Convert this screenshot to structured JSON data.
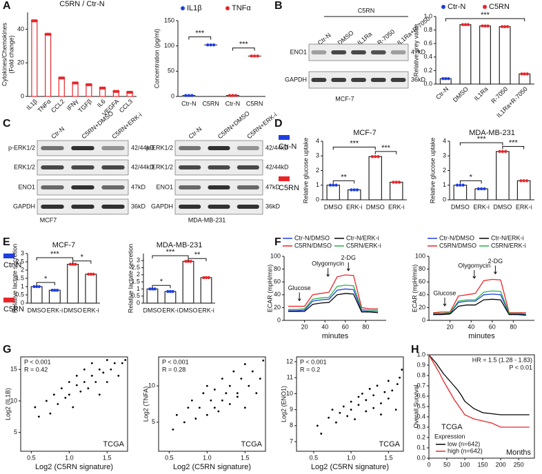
{
  "panel_labels": [
    "A",
    "B",
    "C",
    "D",
    "E",
    "F",
    "G",
    "H"
  ],
  "blots": [
    {
      "group": "C5RN",
      "lanes": [
        "Ctr-N",
        "DMSO",
        "IL1Ra",
        "R-7050",
        "IL1Ra+R-7050"
      ],
      "rows": [
        {
          "protein": "ENO1",
          "size": "47kD"
        },
        {
          "protein": "GAPDH",
          "size": "36kD"
        }
      ],
      "caption": "MCF-7"
    },
    {
      "lanes": [
        "Ctr-N",
        "C5RN+DMSO",
        "C5RN+ERK-i"
      ],
      "rows": [
        {
          "protein": "p-ERK1/2",
          "size": "42/44kD"
        },
        {
          "protein": "ERK1/2",
          "size": "42/44kD"
        },
        {
          "protein": "ENO1",
          "size": "47kD"
        },
        {
          "protein": "GAPDH",
          "size": "36kD"
        }
      ],
      "caption": "MCF7"
    },
    {
      "lanes": [
        "Ctr-N",
        "C5RN+DMSO",
        "C5RN+ERK-i"
      ],
      "rows": [
        {
          "protein": "p-ERK1/2",
          "size": "42/44kD"
        },
        {
          "protein": "ERK1/2",
          "size": "42/44kD"
        },
        {
          "protein": "ENO1",
          "size": "47kD"
        },
        {
          "protein": "GAPDH",
          "size": "36kD"
        }
      ],
      "caption": "MDA-MB-231"
    }
  ],
  "chart_data": [
    {
      "type": "bar",
      "title": "C5RN / Ctr-N",
      "ylabel": [
        "Cytokines/Chemokines",
        "(Fold change)"
      ],
      "categories": [
        "IL1β",
        "TNFα",
        "CCL2",
        "IFNγ",
        "TGFβ",
        "IL6",
        "VEGFA",
        "CCL3"
      ],
      "series": [
        {
          "color": "#e8262a",
          "values": [
            45,
            37,
            11,
            8,
            7,
            5,
            3,
            2.5
          ]
        }
      ],
      "ylim": [
        0,
        50
      ],
      "yticks": [
        0,
        20,
        40
      ]
    },
    {
      "type": "bar",
      "ylabel": [
        "Concentration (pg/ml)"
      ],
      "categories": [
        "Ctr-N",
        "C5RN",
        "Ctr-N",
        "C5RN"
      ],
      "series": [
        {
          "name": "IL1β",
          "color": "#1f3ee0",
          "values": [
            2,
            102,
            null,
            null
          ]
        },
        {
          "name": "TNFα",
          "color": "#e8262a",
          "values": [
            null,
            null,
            2,
            80
          ]
        }
      ],
      "bars": false,
      "ylim": [
        0,
        150
      ],
      "yticks": [
        0,
        50,
        100,
        150
      ],
      "annotations": [
        "***",
        "***"
      ]
    },
    {
      "type": "bar",
      "ylabel": [
        "Relative grey value"
      ],
      "categories": [
        "Ctr-N",
        "DMSO",
        "IL1Ra",
        "R-7050",
        "IL1Ra+R-7050"
      ],
      "series": [
        {
          "name": "Ctr-N",
          "color": "#1f3ee0",
          "values": [
            0.08,
            null,
            null,
            null,
            null
          ]
        },
        {
          "name": "C5RN",
          "color": "#e8262a",
          "values": [
            null,
            0.88,
            0.86,
            0.85,
            0.15
          ]
        }
      ],
      "ylim": [
        0,
        1
      ],
      "yticks": [
        {
          "value": 0,
          "label": "0.0"
        },
        0.2,
        0.4,
        0.6,
        0.8,
        {
          "value": 1,
          "label": "1.0"
        }
      ],
      "annotations": [
        "***"
      ]
    },
    {
      "type": "bar",
      "title": "MCF-7",
      "ylabel": [
        "Relative glucose uptake"
      ],
      "categories": [
        "DMSO",
        "ERK-i",
        "DMSO",
        "ERK-i"
      ],
      "series": [
        {
          "name": "Ctr-N",
          "color": "#1f3ee0",
          "values": [
            1.0,
            0.68,
            null,
            null
          ]
        },
        {
          "name": "C5RN",
          "color": "#e8262a",
          "values": [
            null,
            null,
            2.95,
            1.2
          ]
        }
      ],
      "ylim": [
        0,
        4
      ],
      "yticks": [
        0,
        1,
        2,
        3,
        4
      ],
      "annotations": [
        "**",
        "***",
        "***"
      ]
    },
    {
      "type": "bar",
      "title": "MDA-MB-231",
      "ylabel": [
        "Relative glucose uptake"
      ],
      "categories": [
        "DMSO",
        "ERK-i",
        "DMSO",
        "ERK-i"
      ],
      "series": [
        {
          "color": "#1f3ee0",
          "values": [
            1.0,
            0.75,
            null,
            null
          ]
        },
        {
          "color": "#e8262a",
          "values": [
            null,
            null,
            3.3,
            1.3
          ]
        }
      ],
      "ylim": [
        0,
        4
      ],
      "yticks": [
        0,
        1,
        2,
        3,
        4
      ],
      "annotations": [
        "*",
        "***",
        "***"
      ]
    },
    {
      "type": "bar",
      "title": "MCF-7",
      "ylabel": [
        "Relative lactate secretion"
      ],
      "categories": [
        "DMSO",
        "ERK-i",
        "DMSO",
        "ERK-i"
      ],
      "series": [
        {
          "name": "Ctr-N",
          "color": "#1f3ee0",
          "values": [
            1.0,
            0.78,
            null,
            null
          ]
        },
        {
          "name": "C5RN",
          "color": "#e8262a",
          "values": [
            null,
            null,
            2.35,
            1.75
          ]
        }
      ],
      "ylim": [
        0,
        3
      ],
      "yticks": [
        0,
        0.5,
        1,
        1.5,
        2,
        2.5,
        3
      ],
      "annotations": [
        "*",
        "***",
        "*"
      ]
    },
    {
      "type": "bar",
      "title": "MDA-MB-231",
      "ylabel": [
        "Relative lactate secretion"
      ],
      "categories": [
        "DMSO",
        "ERK-i",
        "DMSO",
        "ERK-i"
      ],
      "series": [
        {
          "color": "#1f3ee0",
          "values": [
            1.0,
            0.82,
            null,
            null
          ]
        },
        {
          "color": "#e8262a",
          "values": [
            null,
            null,
            2.95,
            1.8
          ]
        }
      ],
      "ylim": [
        0,
        3.5
      ],
      "yticks": [
        0,
        0.5,
        1,
        1.5,
        2,
        2.5,
        3
      ],
      "annotations": [
        "*",
        "***",
        "**"
      ]
    },
    {
      "type": "line",
      "ylabel": [
        "ECAR (mpH/min)"
      ],
      "xlabel": "minutes",
      "x": [
        4,
        12,
        20,
        28,
        36,
        44,
        52,
        60,
        68,
        76,
        84,
        92
      ],
      "xlim": [
        0,
        100
      ],
      "xticks": [
        20,
        40,
        60,
        80
      ],
      "ylim": [
        0,
        100
      ],
      "yticks": [
        0,
        20,
        40,
        60,
        80,
        100
      ],
      "series": [
        {
          "name": "Ctr-N/DMSO",
          "color": "#1f3ee0",
          "values": [
            15,
            15,
            16,
            30,
            32,
            33,
            47,
            49,
            48,
            15,
            14,
            14
          ]
        },
        {
          "name": "Ctr-N/ERK-i",
          "color": "#000000",
          "values": [
            14,
            14,
            14,
            25,
            27,
            28,
            40,
            42,
            41,
            13,
            13,
            12
          ]
        },
        {
          "name": "C5RN/DMSO",
          "color": "#e8262a",
          "values": [
            22,
            22,
            22,
            40,
            42,
            44,
            68,
            71,
            70,
            20,
            18,
            18
          ]
        },
        {
          "name": "C5RN/ERK-i",
          "color": "#22b14c",
          "values": [
            17,
            17,
            18,
            33,
            35,
            36,
            53,
            55,
            54,
            17,
            16,
            16
          ]
        }
      ],
      "annotations": [
        "Glucose",
        "Olygomycin",
        "2-DG"
      ]
    },
    {
      "type": "line",
      "ylabel": [
        "ECAR (mpH/min)"
      ],
      "xlabel": "minutes",
      "x": [
        4,
        12,
        20,
        28,
        36,
        44,
        52,
        60,
        68,
        76,
        84,
        92
      ],
      "xlim": [
        0,
        100
      ],
      "xticks": [
        20,
        40,
        60,
        80
      ],
      "ylim": [
        0,
        100
      ],
      "yticks": [
        0,
        20,
        40,
        60,
        80,
        100
      ],
      "series": [
        {
          "name": "Ctr-N/DMSO",
          "color": "#1f3ee0",
          "values": [
            10,
            10,
            11,
            28,
            30,
            30,
            40,
            41,
            40,
            10,
            10,
            9
          ]
        },
        {
          "name": "Ctr-N/ERK-i",
          "color": "#000000",
          "values": [
            9,
            9,
            10,
            22,
            24,
            24,
            32,
            33,
            32,
            9,
            9,
            8
          ]
        },
        {
          "name": "C5RN/DMSO",
          "color": "#e8262a",
          "values": [
            12,
            13,
            13,
            38,
            40,
            42,
            62,
            64,
            63,
            12,
            12,
            12
          ]
        },
        {
          "name": "C5RN/ERK-i",
          "color": "#22b14c",
          "values": [
            11,
            11,
            12,
            30,
            32,
            32,
            44,
            46,
            45,
            11,
            11,
            10
          ]
        }
      ],
      "annotations": [
        "Glucose",
        "Olygomycin",
        "2-DG"
      ]
    },
    {
      "type": "scatter",
      "ylabel": [
        "Log2 (IL1B)"
      ],
      "xlabel": "Log2 (C5RN signature)",
      "xlim": [
        0.36,
        1.77
      ],
      "xticks": [
        0.5,
        {
          "value": 1,
          "label": "1.0"
        },
        1.5
      ],
      "ylim": [
        2,
        17
      ],
      "yticks": [
        5,
        10,
        15
      ],
      "color": "#000000",
      "x": [
        0.55,
        0.6,
        0.7,
        0.75,
        0.8,
        0.85,
        0.9,
        0.95,
        1.0,
        1.0,
        1.05,
        1.1,
        1.1,
        1.15,
        1.2,
        1.2,
        1.25,
        1.3,
        1.3,
        1.35,
        1.4,
        1.4,
        1.45,
        1.5,
        1.5,
        1.55,
        1.6,
        1.65,
        1.7,
        1.74
      ],
      "values": [
        9,
        7.5,
        10,
        8,
        11,
        9.5,
        12,
        10.5,
        11,
        13,
        9,
        12.5,
        14,
        11.5,
        13,
        15,
        12,
        14,
        16,
        13,
        15,
        11,
        14.5,
        16.5,
        13,
        15,
        16,
        14,
        16,
        16.5
      ],
      "annotations": [
        "P < 0.001",
        "R = 0.42",
        "TCGA"
      ]
    },
    {
      "type": "scatter",
      "ylabel": [
        "Log2 (TNFA)"
      ],
      "xlabel": "Log2 (C5RN signature)",
      "xlim": [
        0.36,
        1.77
      ],
      "xticks": [
        0.5,
        {
          "value": 1,
          "label": "1.0"
        },
        1.5
      ],
      "ylim": [
        1,
        14
      ],
      "yticks": [
        5,
        10
      ],
      "color": "#000000",
      "x": [
        0.55,
        0.6,
        0.7,
        0.75,
        0.8,
        0.85,
        0.9,
        0.95,
        1.0,
        1.0,
        1.05,
        1.1,
        1.1,
        1.15,
        1.2,
        1.2,
        1.25,
        1.3,
        1.3,
        1.35,
        1.4,
        1.4,
        1.45,
        1.5,
        1.5,
        1.55,
        1.6,
        1.65,
        1.7,
        1.74
      ],
      "values": [
        4,
        6,
        5,
        7,
        8,
        5.5,
        7,
        9,
        6,
        10,
        8,
        7,
        9.5,
        6.5,
        8,
        11,
        9,
        7.5,
        10,
        12,
        8.5,
        9,
        11,
        13,
        7,
        10,
        12,
        9,
        11,
        13.5
      ],
      "annotations": [
        "P < 0.001",
        "R = 0.28",
        "TCGA"
      ]
    },
    {
      "type": "scatter",
      "ylabel": [
        "Log2 (ENO1)"
      ],
      "xlabel": "Log2 (C5RN signature)",
      "xlim": [
        0.27,
        1.7
      ],
      "xticks": [
        0.5,
        {
          "value": 1,
          "label": "1.0"
        },
        1.5
      ],
      "ylim": [
        6.4,
        12.3
      ],
      "yticks": [
        7,
        8,
        9,
        10,
        11,
        12
      ],
      "color": "#000000",
      "x": [
        0.55,
        0.6,
        0.7,
        0.75,
        0.8,
        0.85,
        0.9,
        0.95,
        1.0,
        1.0,
        1.05,
        1.1,
        1.1,
        1.15,
        1.2,
        1.2,
        1.25,
        1.3,
        1.3,
        1.35,
        1.4,
        1.4,
        1.45,
        1.5,
        1.5,
        1.55,
        1.6,
        1.62,
        1.65,
        1.68
      ],
      "values": [
        8,
        7.5,
        8.5,
        9,
        8.2,
        8.8,
        9.2,
        8.6,
        9.5,
        9,
        8.4,
        9.8,
        9.3,
        10,
        8.9,
        9.6,
        10.3,
        9.1,
        9.9,
        10.5,
        8.7,
        9.4,
        10.1,
        10.8,
        9.7,
        10.2,
        9,
        10.6,
        11,
        11.5
      ],
      "annotations": [
        "P < 0.001",
        "R = 0.2",
        "TCGA"
      ]
    },
    {
      "type": "line",
      "ylabel": [
        "Overall Survival"
      ],
      "xlabel": "Months",
      "x": [
        0,
        10,
        20,
        30,
        40,
        50,
        60,
        70,
        80,
        90,
        100,
        125,
        150,
        175,
        200,
        250,
        280
      ],
      "xlim": [
        0,
        294
      ],
      "xticks": [
        0,
        50,
        100,
        150,
        200,
        250
      ],
      "ylim": [
        0,
        1
      ],
      "yticks": [
        {
          "value": 0,
          "label": "0.0"
        },
        0.1,
        0.2,
        0.3,
        0.4,
        0.5,
        0.6,
        0.7,
        0.8,
        0.9,
        {
          "value": 1,
          "label": "1.0"
        }
      ],
      "series": [
        {
          "name": "low (n=642)",
          "color": "#000000",
          "values": [
            1,
            0.96,
            0.92,
            0.87,
            0.82,
            0.78,
            0.74,
            0.7,
            0.66,
            0.61,
            0.55,
            0.48,
            0.44,
            0.43,
            0.42,
            0.42,
            0.42
          ]
        },
        {
          "name": "high (n=642)",
          "color": "#e8262a",
          "values": [
            1,
            0.94,
            0.88,
            0.82,
            0.75,
            0.69,
            0.63,
            0.57,
            0.52,
            0.47,
            0.42,
            0.38,
            0.36,
            0.34,
            0.3,
            0.3,
            0.3
          ]
        }
      ],
      "annotations": [
        "HR = 1.5 (1.28 - 1.83)",
        "P < 0.01",
        "TCGA",
        "Expression"
      ]
    }
  ]
}
